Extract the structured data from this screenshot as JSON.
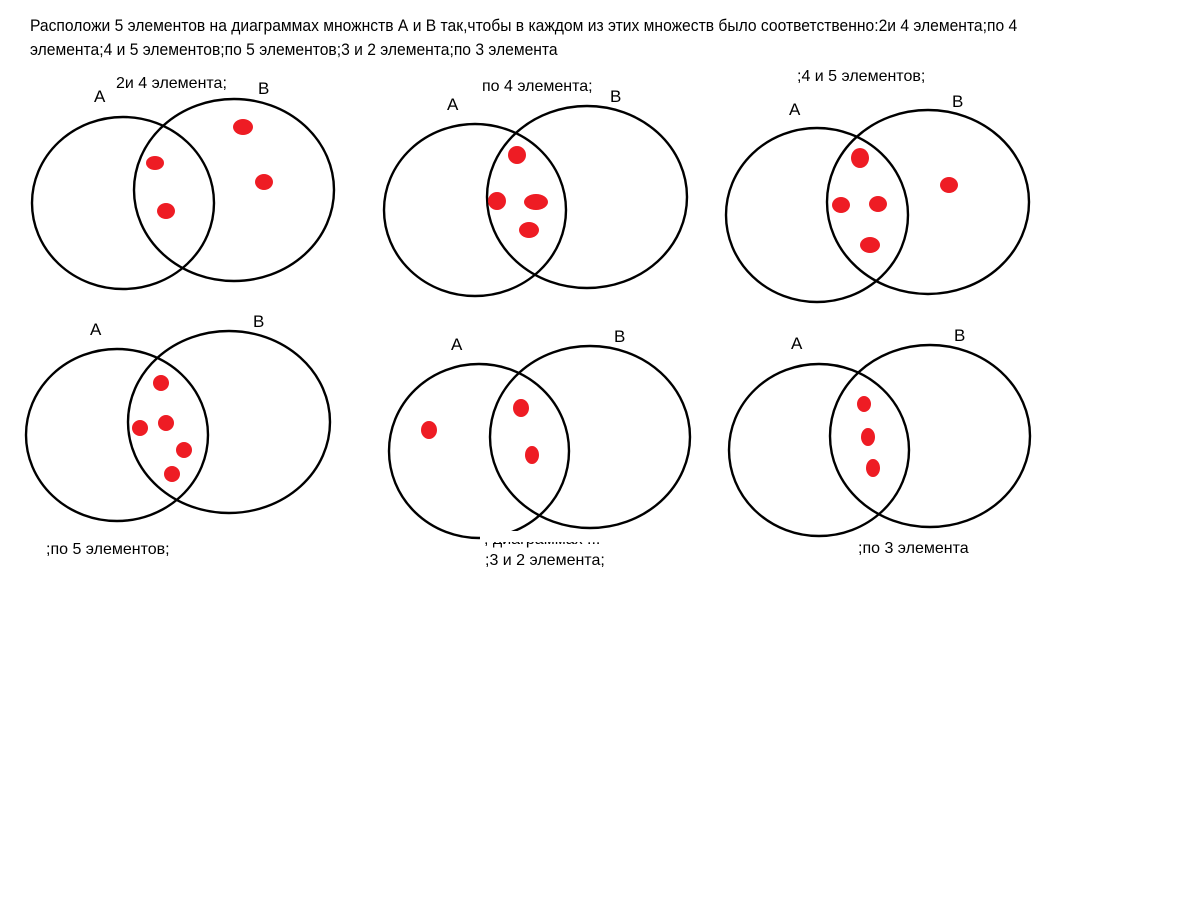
{
  "task": {
    "text": "Расположи 5 элементов на диаграммах множнств А и В так,чтобы в каждом из этих множеств было соответственно:2и 4 элемента;по 4 элемента;4 и 5 элементов;по 5 элементов;3 и 2 элемента;по 3 элемента"
  },
  "colors": {
    "element_dot": "#ee1c24",
    "outline": "#000000",
    "background": "#ffffff"
  },
  "diagrams": [
    {
      "caption": "2и 4 элемента;",
      "set_a_label": "A",
      "set_b_label": "B",
      "elements": [
        {
          "region": "intersection"
        },
        {
          "region": "intersection"
        },
        {
          "region": "B only"
        },
        {
          "region": "B only"
        }
      ]
    },
    {
      "caption": "по 4 элемента;",
      "set_a_label": "A",
      "set_b_label": "B",
      "elements": [
        {
          "region": "intersection"
        },
        {
          "region": "intersection"
        },
        {
          "region": "intersection"
        },
        {
          "region": "intersection"
        }
      ]
    },
    {
      "caption": ";4 и 5  элементов;",
      "set_a_label": "A",
      "set_b_label": "B",
      "elements": [
        {
          "region": "intersection"
        },
        {
          "region": "intersection"
        },
        {
          "region": "intersection"
        },
        {
          "region": "intersection"
        },
        {
          "region": "B only"
        }
      ]
    },
    {
      "caption": ";по 5 элементов;",
      "set_a_label": "A",
      "set_b_label": "B",
      "elements": [
        {
          "region": "intersection"
        },
        {
          "region": "intersection"
        },
        {
          "region": "intersection"
        },
        {
          "region": "intersection"
        },
        {
          "region": "intersection"
        }
      ]
    },
    {
      "caption": ";3 и 2 элемента;",
      "overlapping_text": "; диаграммах ...",
      "set_a_label": "A",
      "set_b_label": "B",
      "elements": [
        {
          "region": "A only"
        },
        {
          "region": "intersection"
        },
        {
          "region": "intersection"
        }
      ]
    },
    {
      "caption": ";по 3 элемента",
      "set_a_label": "A",
      "set_b_label": "B",
      "elements": [
        {
          "region": "intersection"
        },
        {
          "region": "intersection"
        },
        {
          "region": "intersection"
        }
      ]
    }
  ]
}
